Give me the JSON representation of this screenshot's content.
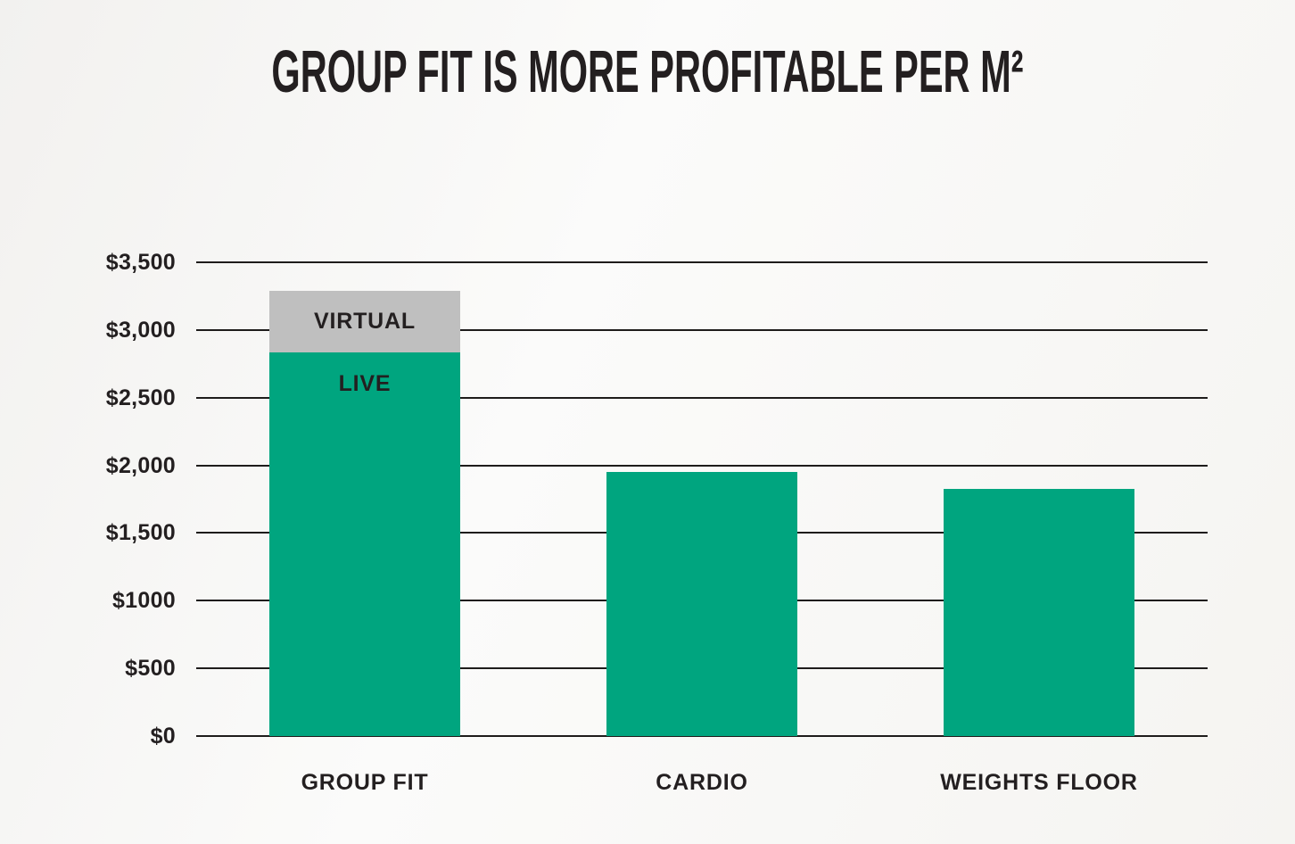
{
  "chart_data": {
    "type": "bar",
    "stacked": true,
    "title": "GROUP FIT IS MORE PROFITABLE PER  M²",
    "categories": [
      "GROUP FIT",
      "CARDIO",
      "WEIGHTS FLOOR"
    ],
    "series": [
      {
        "name": "LIVE",
        "color": "#00a57f",
        "values": [
          2835,
          1950,
          1825
        ],
        "label_on_bars": [
          0
        ]
      },
      {
        "name": "VIRTUAL",
        "color": "#bfbfbf",
        "values": [
          455,
          0,
          0
        ],
        "label_on_bars": [
          0
        ]
      }
    ],
    "y_ticks": [
      {
        "label": "$3,500",
        "value": 3500
      },
      {
        "label": "$3,000",
        "value": 3000
      },
      {
        "label": "$2,500",
        "value": 2500
      },
      {
        "label": "$2,000",
        "value": 2000
      },
      {
        "label": "$1,500",
        "value": 1500
      },
      {
        "label": "$1000",
        "value": 1000
      },
      {
        "label": "$500",
        "value": 500
      },
      {
        "label": "$0",
        "value": 0
      }
    ],
    "ylim": [
      0,
      3500
    ],
    "grid": true,
    "legend": "none",
    "xlabel": "",
    "ylabel": "",
    "text_color": "#231f20",
    "grid_color": "#1e1c1b",
    "background": "#f7f6f4"
  }
}
